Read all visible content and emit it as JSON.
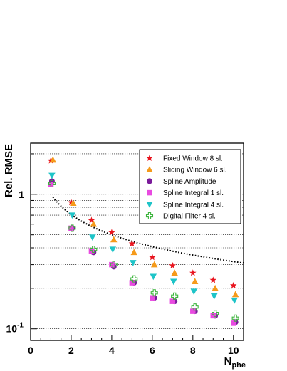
{
  "chart_data": {
    "type": "scatter",
    "title": "",
    "xlabel": "N",
    "xlabel_sub": "phe",
    "ylabel": "Rel. RMSE",
    "xlim": [
      0,
      10.5
    ],
    "ylim": [
      0.082,
      2.4
    ],
    "yscale": "log",
    "grid": "horizontal-dotted",
    "legend_position": "top-right",
    "x_ticks": [
      {
        "value": 0,
        "label": "0"
      },
      {
        "value": 2,
        "label": "2"
      },
      {
        "value": 4,
        "label": "4"
      },
      {
        "value": 6,
        "label": "6"
      },
      {
        "value": 8,
        "label": "8"
      },
      {
        "value": 10,
        "label": "10"
      }
    ],
    "y_tick_labels": [
      {
        "value": 1,
        "label": "1",
        "exp": ""
      },
      {
        "value": 0.1,
        "label": "10",
        "exp": "-1"
      }
    ],
    "y_grid_values": [
      0.1,
      0.2,
      0.3,
      0.4,
      0.5,
      0.6,
      0.7,
      0.8,
      0.9,
      1.0,
      2.0
    ],
    "reference_curve": {
      "style": "dotted",
      "formula": "1/sqrt(x)",
      "x_start": 1.1,
      "x_end": 10.5
    },
    "series": [
      {
        "name": "Fixed Window 8 sl.",
        "marker": "star",
        "color": "#e8141e",
        "x": [
          1,
          2,
          3,
          4,
          5,
          6,
          7,
          8,
          9,
          10
        ],
        "y": [
          1.78,
          0.87,
          0.64,
          0.52,
          0.43,
          0.34,
          0.295,
          0.26,
          0.23,
          0.21
        ]
      },
      {
        "name": "Sliding Window 6 sl.",
        "marker": "triangle-up",
        "color": "#f59a1a",
        "x": [
          1.1,
          2.1,
          3.1,
          4.1,
          5.1,
          6.1,
          7.1,
          8.1,
          9.1,
          10.1
        ],
        "y": [
          1.8,
          0.86,
          0.6,
          0.46,
          0.37,
          0.3,
          0.26,
          0.225,
          0.2,
          0.18
        ]
      },
      {
        "name": "Spline Amplitude",
        "marker": "circle",
        "color": "#7a1a9a",
        "x": [
          1.05,
          2.05,
          3.1,
          4.1,
          5.1,
          6.1,
          7.1,
          8.1,
          9.1,
          10.1
        ],
        "y": [
          1.25,
          0.56,
          0.37,
          0.29,
          0.22,
          0.17,
          0.16,
          0.135,
          0.125,
          0.112
        ]
      },
      {
        "name": "Spline Integral 1 sl.",
        "marker": "square",
        "color": "#e84ae0",
        "x": [
          1,
          2,
          3,
          4,
          5,
          6,
          7,
          8,
          9,
          10
        ],
        "y": [
          1.18,
          0.56,
          0.38,
          0.3,
          0.22,
          0.17,
          0.16,
          0.135,
          0.125,
          0.11
        ]
      },
      {
        "name": "Spline Integral 4 sl.",
        "marker": "triangle-down",
        "color": "#1ec4c8",
        "x": [
          1.05,
          2.05,
          3.05,
          4.05,
          5.05,
          6.05,
          7.05,
          8.05,
          9.05,
          10.05
        ],
        "y": [
          1.38,
          0.7,
          0.48,
          0.39,
          0.31,
          0.245,
          0.225,
          0.19,
          0.175,
          0.163
        ]
      },
      {
        "name": "Digital Filter 4 sl.",
        "marker": "cross-open",
        "color": "#3cb43c",
        "x": [
          1.05,
          2.05,
          3.1,
          4.1,
          5.1,
          6.1,
          7.1,
          8.1,
          9.1,
          10.1
        ],
        "y": [
          1.2,
          0.56,
          0.39,
          0.3,
          0.235,
          0.185,
          0.175,
          0.145,
          0.13,
          0.12
        ]
      }
    ]
  }
}
